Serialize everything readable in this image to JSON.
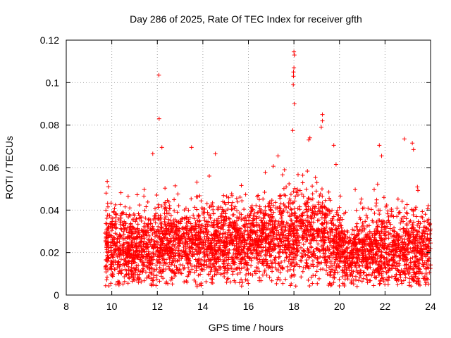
{
  "chart_data": {
    "type": "scatter",
    "title": "Day 286 of 2025, Rate Of TEC Index for receiver gfth",
    "xlabel": "GPS time / hours",
    "ylabel": "ROTI / TECUs",
    "xlim": [
      8,
      24
    ],
    "ylim": [
      0,
      0.12
    ],
    "x_ticks": [
      "8",
      "10",
      "12",
      "14",
      "16",
      "18",
      "20",
      "22",
      "24"
    ],
    "y_ticks": [
      "0",
      "0.02",
      "0.04",
      "0.06",
      "0.08",
      "0.1",
      "0.12"
    ],
    "grid": true,
    "marker": "+",
    "color": "#ff0000",
    "series": [
      {
        "name": "ROTI",
        "points": [
          [
            12.07,
            0.1035
          ],
          [
            12.08,
            0.083
          ],
          [
            13.5,
            0.0695
          ],
          [
            18.0,
            0.1145
          ],
          [
            18.02,
            0.113
          ],
          [
            18.0,
            0.107
          ],
          [
            17.98,
            0.105
          ],
          [
            17.98,
            0.103
          ],
          [
            17.97,
            0.099
          ],
          [
            18.02,
            0.09
          ],
          [
            17.95,
            0.0775
          ],
          [
            19.25,
            0.085
          ],
          [
            19.25,
            0.082
          ],
          [
            19.2,
            0.079
          ],
          [
            22.85,
            0.0735
          ],
          [
            23.2,
            0.0715
          ],
          [
            23.25,
            0.0685
          ],
          [
            11.8,
            0.0665
          ],
          [
            12.2,
            0.0695
          ],
          [
            14.55,
            0.0665
          ],
          [
            17.3,
            0.0655
          ],
          [
            18.7,
            0.074
          ],
          [
            18.65,
            0.073
          ],
          [
            19.75,
            0.0705
          ],
          [
            19.85,
            0.0615
          ],
          [
            21.75,
            0.0705
          ],
          [
            21.85,
            0.0655
          ],
          [
            9.8,
            0.0535
          ],
          [
            9.85,
            0.051
          ],
          [
            9.75,
            0.048
          ],
          [
            12.1,
            0.0065
          ],
          [
            12.6,
            0.007
          ],
          [
            11.75,
            0.0045
          ],
          [
            13.3,
            0.006
          ],
          [
            15.75,
            0.006
          ],
          [
            20.15,
            0.0055
          ],
          [
            20.25,
            0.0075
          ],
          [
            22.0,
            0.0075
          ],
          [
            23.75,
            0.007
          ],
          [
            23.8,
            0.0095
          ]
        ],
        "summary": "Dense cloud of several thousand '+' markers from ~9.7 h to 24 h; bulk between ~0.01 and ~0.045 TECU/s, centered near 0.02-0.03, with upper envelope ~0.045-0.06 and isolated spikes listed above (max ~0.115 near 18 h)."
      }
    ]
  }
}
